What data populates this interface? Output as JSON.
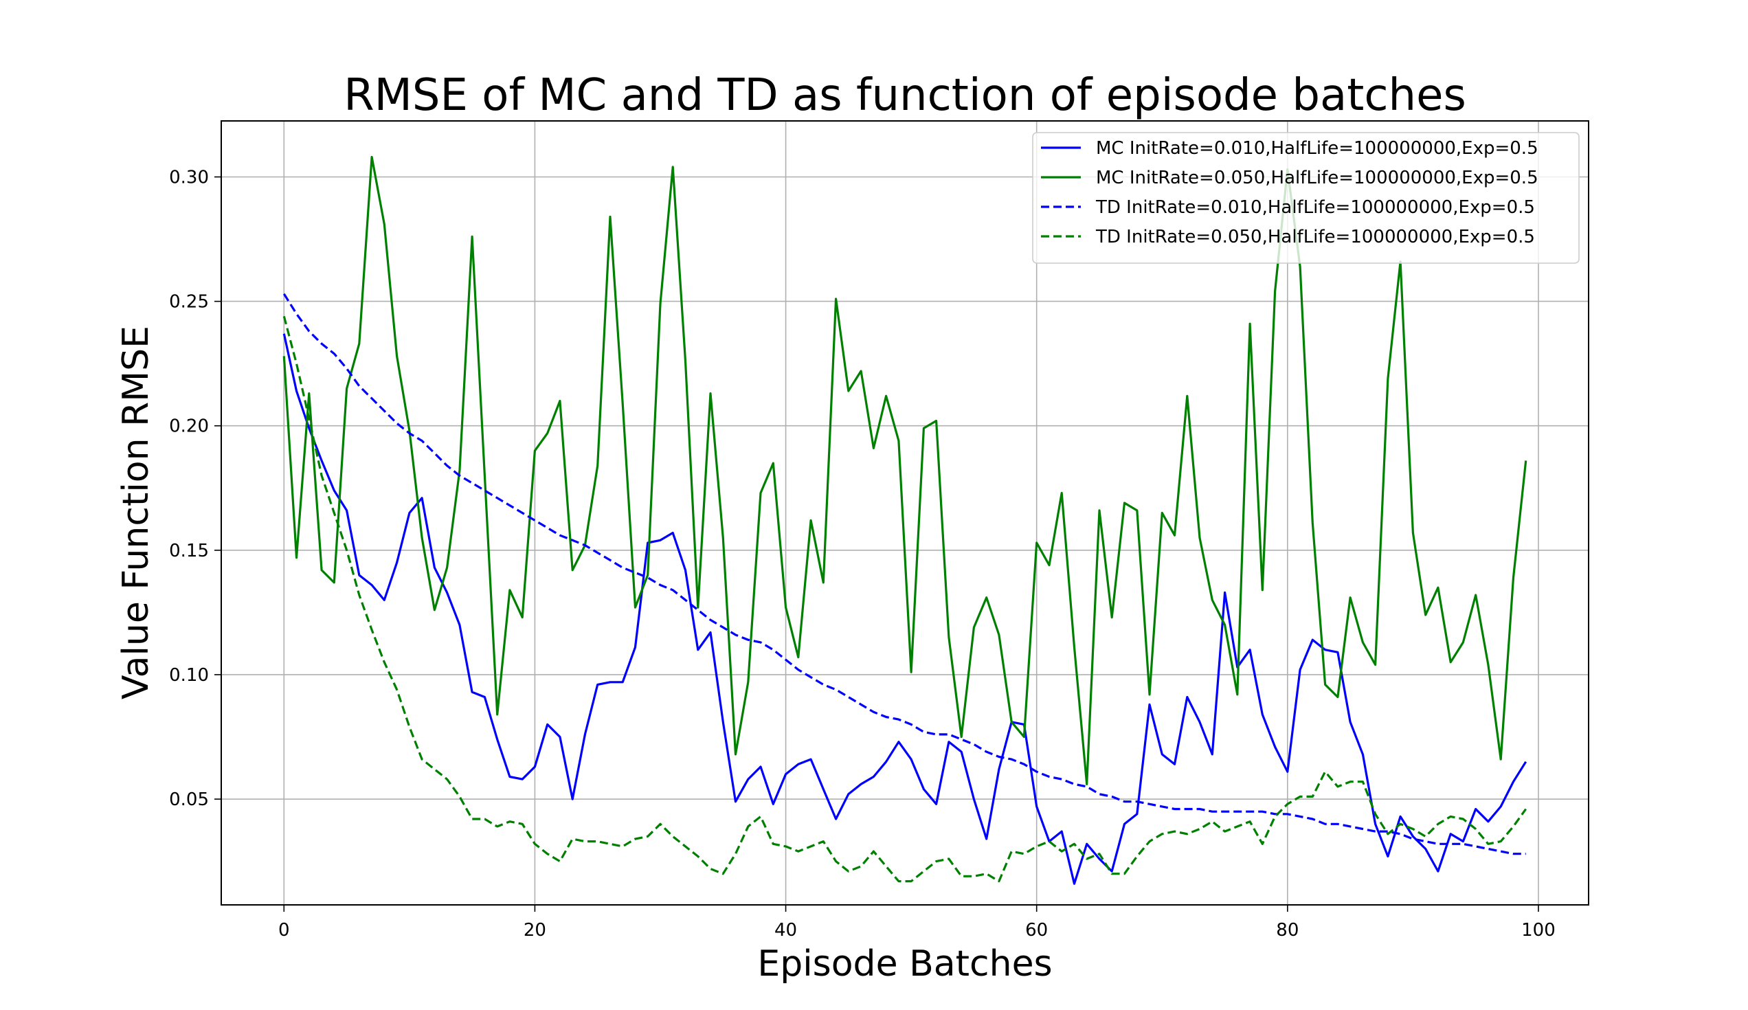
{
  "chart_data": {
    "type": "line",
    "title": "RMSE of MC and TD as function of episode batches",
    "xlabel": "Episode Batches",
    "ylabel": "Value Function RMSE",
    "xlim": [
      -5,
      104
    ],
    "ylim": [
      0.0075,
      0.3225
    ],
    "xticks": [
      0,
      20,
      40,
      60,
      80,
      100
    ],
    "yticks": [
      0.05,
      0.1,
      0.15,
      0.2,
      0.25,
      0.3
    ],
    "xtick_labels": [
      "0",
      "20",
      "40",
      "60",
      "80",
      "100"
    ],
    "ytick_labels": [
      "0.05",
      "0.10",
      "0.15",
      "0.20",
      "0.25",
      "0.30"
    ],
    "grid": true,
    "legend_position": "top-right",
    "series": [
      {
        "name": "MC InitRate=0.010,HalfLife=100000000,Exp=0.5",
        "color": "#0000ff",
        "style": "solid",
        "values": [
          0.237,
          0.214,
          0.199,
          0.186,
          0.174,
          0.166,
          0.14,
          0.136,
          0.13,
          0.145,
          0.165,
          0.171,
          0.143,
          0.133,
          0.12,
          0.093,
          0.091,
          0.074,
          0.059,
          0.058,
          0.063,
          0.08,
          0.075,
          0.05,
          0.076,
          0.096,
          0.097,
          0.097,
          0.111,
          0.153,
          0.154,
          0.157,
          0.142,
          0.11,
          0.117,
          0.081,
          0.049,
          0.058,
          0.063,
          0.048,
          0.06,
          0.064,
          0.066,
          0.054,
          0.042,
          0.052,
          0.056,
          0.059,
          0.065,
          0.073,
          0.066,
          0.054,
          0.048,
          0.073,
          0.069,
          0.05,
          0.034,
          0.062,
          0.081,
          0.08,
          0.047,
          0.033,
          0.037,
          0.016,
          0.032,
          0.026,
          0.021,
          0.04,
          0.044,
          0.088,
          0.068,
          0.064,
          0.091,
          0.081,
          0.068,
          0.133,
          0.103,
          0.11,
          0.084,
          0.071,
          0.061,
          0.102,
          0.114,
          0.11,
          0.109,
          0.081,
          0.068,
          0.04,
          0.027,
          0.043,
          0.035,
          0.03,
          0.021,
          0.036,
          0.033,
          0.046,
          0.041,
          0.047,
          0.057,
          0.065
        ]
      },
      {
        "name": "MC InitRate=0.050,HalfLife=100000000,Exp=0.5",
        "color": "#008000",
        "style": "solid",
        "values": [
          0.228,
          0.147,
          0.213,
          0.142,
          0.137,
          0.215,
          0.233,
          0.308,
          0.281,
          0.228,
          0.198,
          0.155,
          0.126,
          0.143,
          0.182,
          0.276,
          0.18,
          0.084,
          0.134,
          0.123,
          0.19,
          0.197,
          0.21,
          0.142,
          0.152,
          0.184,
          0.284,
          0.209,
          0.127,
          0.14,
          0.249,
          0.304,
          0.226,
          0.127,
          0.213,
          0.155,
          0.068,
          0.097,
          0.173,
          0.185,
          0.127,
          0.107,
          0.162,
          0.137,
          0.251,
          0.214,
          0.222,
          0.191,
          0.212,
          0.194,
          0.101,
          0.199,
          0.202,
          0.115,
          0.075,
          0.119,
          0.131,
          0.116,
          0.081,
          0.075,
          0.153,
          0.144,
          0.173,
          0.111,
          0.056,
          0.166,
          0.123,
          0.169,
          0.166,
          0.092,
          0.165,
          0.156,
          0.212,
          0.155,
          0.13,
          0.12,
          0.092,
          0.241,
          0.134,
          0.254,
          0.303,
          0.264,
          0.161,
          0.096,
          0.091,
          0.131,
          0.113,
          0.104,
          0.219,
          0.266,
          0.157,
          0.124,
          0.135,
          0.105,
          0.113,
          0.132,
          0.104,
          0.066,
          0.139,
          0.186
        ]
      },
      {
        "name": "TD InitRate=0.010,HalfLife=100000000,Exp=0.5",
        "color": "#0000ff",
        "style": "dashed",
        "values": [
          0.253,
          0.245,
          0.238,
          0.233,
          0.229,
          0.223,
          0.216,
          0.211,
          0.206,
          0.201,
          0.197,
          0.194,
          0.189,
          0.184,
          0.18,
          0.177,
          0.174,
          0.171,
          0.168,
          0.165,
          0.162,
          0.159,
          0.156,
          0.154,
          0.152,
          0.149,
          0.146,
          0.143,
          0.141,
          0.139,
          0.136,
          0.134,
          0.13,
          0.126,
          0.122,
          0.119,
          0.116,
          0.114,
          0.113,
          0.11,
          0.106,
          0.102,
          0.099,
          0.096,
          0.094,
          0.091,
          0.088,
          0.085,
          0.083,
          0.082,
          0.08,
          0.077,
          0.076,
          0.076,
          0.074,
          0.072,
          0.069,
          0.067,
          0.066,
          0.064,
          0.061,
          0.059,
          0.058,
          0.056,
          0.055,
          0.052,
          0.051,
          0.049,
          0.049,
          0.048,
          0.047,
          0.046,
          0.046,
          0.046,
          0.045,
          0.045,
          0.045,
          0.045,
          0.045,
          0.044,
          0.044,
          0.043,
          0.042,
          0.04,
          0.04,
          0.039,
          0.038,
          0.037,
          0.037,
          0.036,
          0.034,
          0.033,
          0.032,
          0.032,
          0.032,
          0.031,
          0.03,
          0.029,
          0.028,
          0.028
        ]
      },
      {
        "name": "TD InitRate=0.050,HalfLife=100000000,Exp=0.5",
        "color": "#008000",
        "style": "dashed",
        "values": [
          0.244,
          0.225,
          0.203,
          0.18,
          0.165,
          0.15,
          0.132,
          0.118,
          0.105,
          0.094,
          0.079,
          0.066,
          0.062,
          0.058,
          0.051,
          0.042,
          0.042,
          0.039,
          0.041,
          0.04,
          0.032,
          0.028,
          0.025,
          0.034,
          0.033,
          0.033,
          0.032,
          0.031,
          0.034,
          0.035,
          0.04,
          0.035,
          0.031,
          0.027,
          0.022,
          0.02,
          0.028,
          0.039,
          0.043,
          0.032,
          0.031,
          0.029,
          0.031,
          0.033,
          0.025,
          0.021,
          0.023,
          0.029,
          0.023,
          0.017,
          0.017,
          0.021,
          0.025,
          0.026,
          0.019,
          0.019,
          0.02,
          0.017,
          0.029,
          0.028,
          0.031,
          0.033,
          0.029,
          0.032,
          0.026,
          0.028,
          0.02,
          0.02,
          0.027,
          0.033,
          0.036,
          0.037,
          0.036,
          0.038,
          0.041,
          0.037,
          0.039,
          0.041,
          0.032,
          0.043,
          0.048,
          0.051,
          0.051,
          0.061,
          0.055,
          0.057,
          0.057,
          0.044,
          0.036,
          0.04,
          0.038,
          0.035,
          0.04,
          0.043,
          0.042,
          0.038,
          0.032,
          0.033,
          0.039,
          0.046
        ]
      }
    ]
  }
}
